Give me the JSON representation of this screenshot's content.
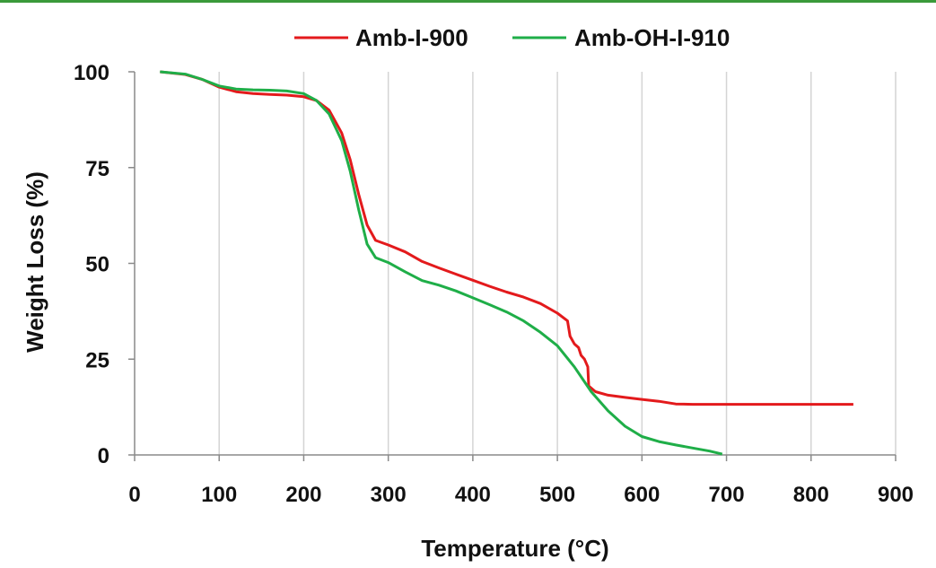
{
  "chart_data": {
    "type": "line",
    "xlabel": "Temperature (°C)",
    "ylabel": "Weight Loss (%)",
    "xlim": [
      0,
      900
    ],
    "ylim": [
      0,
      100
    ],
    "xticks": [
      "0",
      "100",
      "200",
      "300",
      "400",
      "500",
      "600",
      "700",
      "800",
      "900"
    ],
    "yticks": [
      "0",
      "25",
      "50",
      "75",
      "100"
    ],
    "grid": "vertical",
    "legend_position": "top",
    "series": [
      {
        "name": "Amb-I-900",
        "color": "#e31a1c",
        "points": [
          [
            30,
            100
          ],
          [
            60,
            99.3
          ],
          [
            80,
            98
          ],
          [
            100,
            96
          ],
          [
            120,
            94.8
          ],
          [
            140,
            94.3
          ],
          [
            160,
            94.1
          ],
          [
            180,
            93.9
          ],
          [
            200,
            93.5
          ],
          [
            215,
            92.5
          ],
          [
            230,
            90
          ],
          [
            245,
            84
          ],
          [
            255,
            77
          ],
          [
            265,
            68
          ],
          [
            275,
            60
          ],
          [
            285,
            56
          ],
          [
            300,
            54.8
          ],
          [
            320,
            53
          ],
          [
            340,
            50.5
          ],
          [
            360,
            48.8
          ],
          [
            380,
            47.2
          ],
          [
            400,
            45.6
          ],
          [
            420,
            44
          ],
          [
            440,
            42.5
          ],
          [
            460,
            41.2
          ],
          [
            480,
            39.5
          ],
          [
            500,
            37
          ],
          [
            512,
            35
          ],
          [
            515,
            31
          ],
          [
            520,
            29
          ],
          [
            525,
            28
          ],
          [
            528,
            26
          ],
          [
            532,
            25
          ],
          [
            536,
            23
          ],
          [
            537,
            18
          ],
          [
            545,
            16.5
          ],
          [
            560,
            15.6
          ],
          [
            580,
            15
          ],
          [
            600,
            14.5
          ],
          [
            620,
            14
          ],
          [
            640,
            13.3
          ],
          [
            660,
            13.2
          ],
          [
            700,
            13.2
          ],
          [
            750,
            13.2
          ],
          [
            800,
            13.2
          ],
          [
            850,
            13.2
          ]
        ]
      },
      {
        "name": "Amb-OH-I-910",
        "color": "#1fae48",
        "points": [
          [
            30,
            100
          ],
          [
            60,
            99.4
          ],
          [
            80,
            98
          ],
          [
            100,
            96.3
          ],
          [
            120,
            95.5
          ],
          [
            140,
            95.3
          ],
          [
            160,
            95.2
          ],
          [
            180,
            95
          ],
          [
            200,
            94.3
          ],
          [
            215,
            92.5
          ],
          [
            230,
            89
          ],
          [
            245,
            82
          ],
          [
            255,
            74
          ],
          [
            265,
            64
          ],
          [
            275,
            55
          ],
          [
            285,
            51.5
          ],
          [
            300,
            50.2
          ],
          [
            320,
            47.8
          ],
          [
            340,
            45.5
          ],
          [
            360,
            44.3
          ],
          [
            380,
            42.8
          ],
          [
            400,
            41
          ],
          [
            420,
            39.2
          ],
          [
            440,
            37.3
          ],
          [
            460,
            35
          ],
          [
            480,
            32
          ],
          [
            500,
            28.5
          ],
          [
            520,
            23
          ],
          [
            540,
            16.5
          ],
          [
            560,
            11.5
          ],
          [
            580,
            7.5
          ],
          [
            600,
            4.8
          ],
          [
            620,
            3.5
          ],
          [
            640,
            2.6
          ],
          [
            660,
            1.8
          ],
          [
            680,
            1
          ],
          [
            695,
            0.2
          ]
        ]
      }
    ]
  }
}
